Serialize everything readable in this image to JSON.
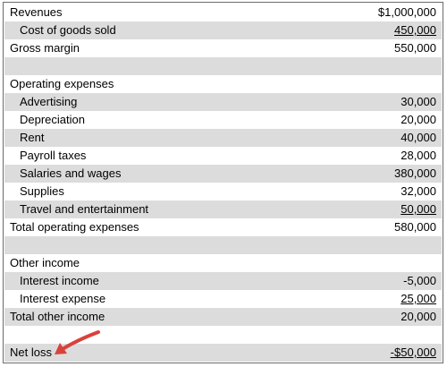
{
  "statement": {
    "rows": [
      {
        "label": "Revenues",
        "value": "$1,000,000"
      },
      {
        "label": "Cost of goods sold",
        "value": "450,000"
      },
      {
        "label": "Gross margin",
        "value": "550,000"
      },
      {
        "label": "",
        "value": ""
      },
      {
        "label": "Operating expenses",
        "value": ""
      },
      {
        "label": "Advertising",
        "value": "30,000"
      },
      {
        "label": "Depreciation",
        "value": "20,000"
      },
      {
        "label": "Rent",
        "value": "40,000"
      },
      {
        "label": "Payroll taxes",
        "value": "28,000"
      },
      {
        "label": "Salaries and wages",
        "value": "380,000"
      },
      {
        "label": "Supplies",
        "value": "32,000"
      },
      {
        "label": "Travel and entertainment",
        "value": "50,000"
      },
      {
        "label": "Total operating expenses",
        "value": "580,000"
      },
      {
        "label": "",
        "value": ""
      },
      {
        "label": "Other income",
        "value": ""
      },
      {
        "label": "Interest income",
        "value": "-5,000"
      },
      {
        "label": "Interest expense",
        "value": "25,000"
      },
      {
        "label": "Total other income",
        "value": "20,000"
      },
      {
        "label": "",
        "value": ""
      },
      {
        "label": "Net loss",
        "value": "-$50,000"
      }
    ]
  },
  "colors": {
    "shade": "#dcdcdc",
    "border": "#6b6b6b",
    "arrow": "#d9423c"
  },
  "icons": {
    "annotation": "red-arrow-icon"
  }
}
